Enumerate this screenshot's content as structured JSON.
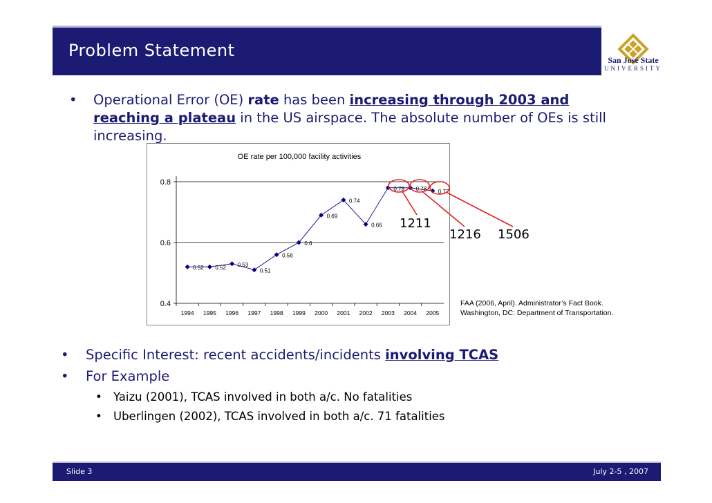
{
  "header": {
    "title": "Problem Statement",
    "logo_name": "San José State",
    "logo_sub": "UNIVERSITY"
  },
  "bullet1": {
    "p1": "Operational Error (OE) ",
    "p2": "rate",
    "p3": " has been ",
    "p4": "increasing through 2003 and reaching a plateau",
    "p5": " in the US airspace.  The absolute number of OEs is still increasing."
  },
  "chart_data": {
    "type": "line",
    "title": "OE rate per 100,000 facility activities",
    "categories": [
      "1994",
      "1995",
      "1996",
      "1997",
      "1998",
      "1999",
      "2000",
      "2001",
      "2002",
      "2003",
      "2004",
      "2005"
    ],
    "values": [
      0.52,
      0.52,
      0.53,
      0.51,
      0.56,
      0.6,
      0.69,
      0.74,
      0.66,
      0.78,
      0.78,
      0.77
    ],
    "data_labels": [
      "0.52",
      "0.52",
      "0.53",
      "0.51",
      "0.56",
      "0.6",
      "0.69",
      "0.74",
      "0.66",
      "0.78",
      "0.78",
      "0.77"
    ],
    "ylim": [
      0.4,
      0.8
    ],
    "yticks": [
      "0.4",
      "0.6",
      "0.8"
    ],
    "grid": true,
    "legend": "none",
    "line_color": "#1b1b99"
  },
  "callouts": {
    "c1": "1211",
    "c2": "1216",
    "c3": "1506"
  },
  "citation": "FAA (2006, April).  Administrator’s Fact Book.  Washington, DC: Department of Transportation.",
  "bullet2": {
    "p1": "Specific Interest: recent accidents/incidents ",
    "p2": "involving TCAS"
  },
  "bullet3": {
    "text": "For Example"
  },
  "sub1": {
    "text": "Yaizu (2001), TCAS involved in both a/c. No fatalities"
  },
  "sub2": {
    "text": "Uberlingen (2002), TCAS involved in both a/c. 71 fatalities"
  },
  "footer": {
    "left": "Slide 3",
    "right": "July 2-5 , 2007"
  },
  "colors": {
    "navy": "#1b1b73",
    "highlight_circle": "#e02020"
  }
}
